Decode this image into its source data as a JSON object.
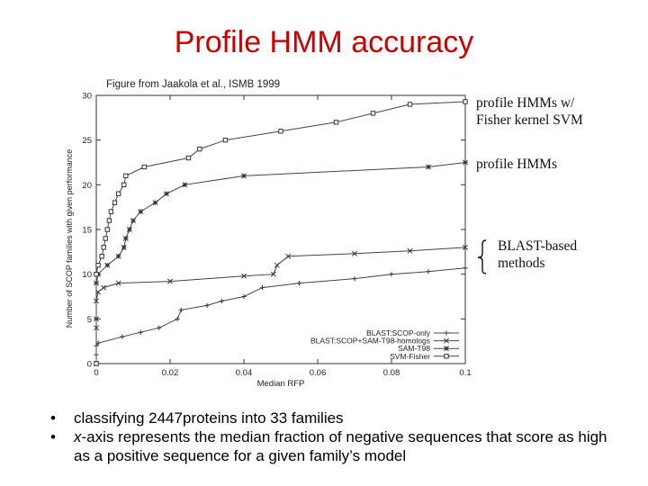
{
  "slide": {
    "title": "Profile HMM accuracy",
    "citation": "Figure from Jaakola et al., ISMB 1999",
    "notes": {
      "fisher_line1": "profile HMMs w/",
      "fisher_line2": "Fisher kernel SVM",
      "hmm": "profile HMMs",
      "blast_line1": "BLAST-based",
      "blast_line2": "methods"
    },
    "bullets": [
      {
        "text": "classifying 2447proteins into 33 families"
      },
      {
        "italic": "x",
        "text": "-axis represents the median fraction of negative sequences that score as high as a positive sequence for a given family’s model"
      }
    ],
    "bullet_glyph": "•"
  },
  "chart_data": {
    "type": "line",
    "xlabel": "Median RFP",
    "ylabel": "Number of SCOP families with given performance",
    "xlim": [
      0,
      0.1
    ],
    "ylim": [
      0,
      30
    ],
    "xticks": [
      0,
      0.02,
      0.04,
      0.06,
      0.08,
      0.1
    ],
    "xtick_labels": [
      "0",
      "0.02",
      "0.04",
      "0.06",
      "0.08",
      "0.1"
    ],
    "yticks": [
      0,
      5,
      10,
      15,
      20,
      25,
      30
    ],
    "ytick_labels": [
      "0",
      "5",
      "10",
      "15",
      "20",
      "25",
      "30"
    ],
    "legend_position": "bottom-right",
    "series": [
      {
        "name": "BLAST:SCOP-only",
        "marker": "plus",
        "points": [
          [
            0,
            0
          ],
          [
            0,
            1
          ],
          [
            0,
            2
          ],
          [
            0.0005,
            2.3
          ],
          [
            0.007,
            3
          ],
          [
            0.012,
            3.5
          ],
          [
            0.017,
            4
          ],
          [
            0.022,
            5
          ],
          [
            0.023,
            6
          ],
          [
            0.03,
            6.5
          ],
          [
            0.034,
            7
          ],
          [
            0.04,
            7.5
          ],
          [
            0.045,
            8.5
          ],
          [
            0.055,
            9
          ],
          [
            0.07,
            9.5
          ],
          [
            0.08,
            10
          ],
          [
            0.09,
            10.3
          ],
          [
            0.1,
            10.7
          ]
        ]
      },
      {
        "name": "BLAST:SCOP+SAM-T98-homologs",
        "marker": "cross",
        "points": [
          [
            0,
            0
          ],
          [
            0,
            4
          ],
          [
            0,
            7
          ],
          [
            0.0005,
            8
          ],
          [
            0.002,
            8.5
          ],
          [
            0.006,
            9
          ],
          [
            0.02,
            9.2
          ],
          [
            0.04,
            9.8
          ],
          [
            0.048,
            10
          ],
          [
            0.049,
            11
          ],
          [
            0.052,
            12
          ],
          [
            0.07,
            12.3
          ],
          [
            0.085,
            12.6
          ],
          [
            0.1,
            13
          ]
        ]
      },
      {
        "name": "SAM-T98",
        "marker": "star",
        "points": [
          [
            0,
            0
          ],
          [
            0,
            5
          ],
          [
            0,
            9
          ],
          [
            0.0005,
            10
          ],
          [
            0.003,
            11
          ],
          [
            0.006,
            12
          ],
          [
            0.0075,
            13
          ],
          [
            0.008,
            14
          ],
          [
            0.009,
            15
          ],
          [
            0.01,
            16
          ],
          [
            0.012,
            17
          ],
          [
            0.016,
            18
          ],
          [
            0.019,
            19
          ],
          [
            0.024,
            20
          ],
          [
            0.04,
            21
          ],
          [
            0.09,
            22
          ],
          [
            0.1,
            22.5
          ]
        ]
      },
      {
        "name": "SVM-Fisher",
        "marker": "square",
        "points": [
          [
            0,
            0
          ],
          [
            0,
            10
          ],
          [
            0.0005,
            11
          ],
          [
            0.0015,
            12
          ],
          [
            0.002,
            13
          ],
          [
            0.0025,
            14
          ],
          [
            0.003,
            15
          ],
          [
            0.0035,
            16
          ],
          [
            0.004,
            17
          ],
          [
            0.005,
            18
          ],
          [
            0.006,
            19
          ],
          [
            0.0075,
            20
          ],
          [
            0.008,
            21
          ],
          [
            0.013,
            22
          ],
          [
            0.025,
            23
          ],
          [
            0.028,
            24
          ],
          [
            0.035,
            25
          ],
          [
            0.05,
            26
          ],
          [
            0.065,
            27
          ],
          [
            0.075,
            28
          ],
          [
            0.085,
            29
          ],
          [
            0.1,
            29.3
          ]
        ]
      }
    ]
  }
}
